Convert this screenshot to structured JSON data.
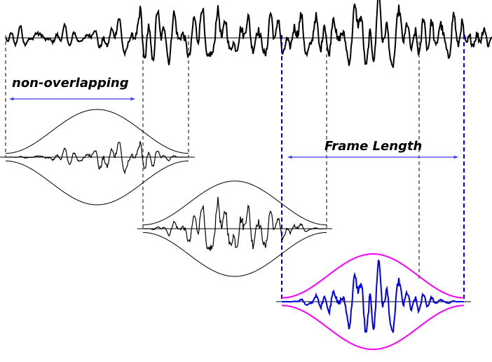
{
  "labels": {
    "non_overlapping": "non-overlapping",
    "frame_length": "Frame Length"
  },
  "colors": {
    "signal": "#000000",
    "window": "#000000",
    "highlight_signal": "#0000e6",
    "highlight_window": "#ff00ff",
    "arrow": "#3a3aff",
    "frame_boundary": "#0000cc"
  },
  "frames": [
    {
      "name": "frame-1",
      "highlighted": false
    },
    {
      "name": "frame-2",
      "highlighted": false
    },
    {
      "name": "frame-3",
      "highlighted": true
    }
  ]
}
